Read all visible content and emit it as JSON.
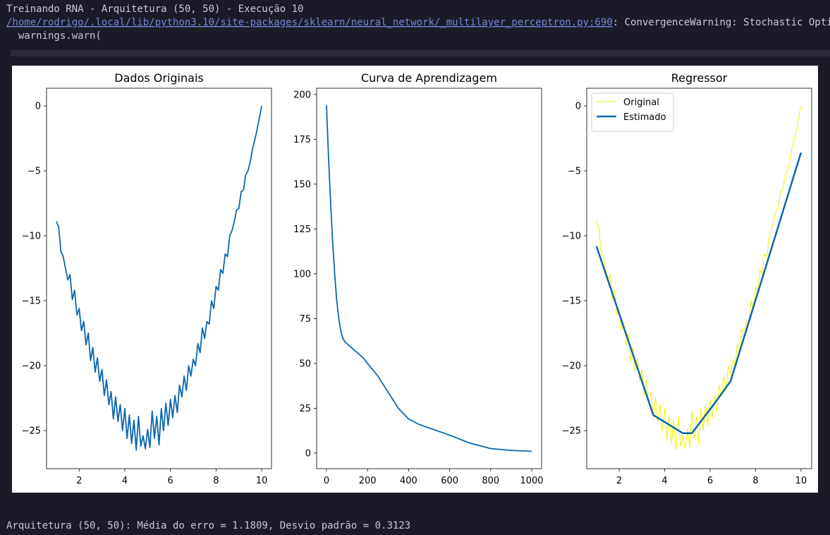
{
  "output": {
    "title_line": "Treinando RNA - Arquitetura (50, 50) - Execução 10",
    "warning_path": "/home/rodrigo/.local/lib/python3.10/site-packages/sklearn/neural_network/_multilayer_perceptron.py:690",
    "warning_message": ": ConvergenceWarning: Stochastic Opti",
    "warning_call": "  warnings.warn(",
    "result": "Arquitetura (50, 50): Média do erro = 1.1809, Desvio padrão = 0.3123"
  },
  "chart_data": [
    {
      "type": "line",
      "title": "Dados Originais",
      "color": "#0a68ae",
      "x": [
        1.0,
        1.1,
        1.2,
        1.3,
        1.4,
        1.5,
        1.6,
        1.7,
        1.8,
        1.9,
        2.0,
        2.1,
        2.2,
        2.3,
        2.4,
        2.5,
        2.6,
        2.7,
        2.8,
        2.9,
        3.0,
        3.1,
        3.2,
        3.3,
        3.4,
        3.5,
        3.6,
        3.7,
        3.8,
        3.9,
        4.0,
        4.1,
        4.2,
        4.3,
        4.4,
        4.5,
        4.6,
        4.7,
        4.8,
        4.9,
        5.0,
        5.1,
        5.2,
        5.3,
        5.4,
        5.5,
        5.6,
        5.7,
        5.8,
        5.9,
        6.0,
        6.1,
        6.2,
        6.3,
        6.4,
        6.5,
        6.6,
        6.7,
        6.8,
        6.9,
        7.0,
        7.1,
        7.2,
        7.3,
        7.4,
        7.5,
        7.6,
        7.7,
        7.8,
        7.9,
        8.0,
        8.1,
        8.2,
        8.3,
        8.4,
        8.5,
        8.6,
        8.7,
        8.8,
        8.9,
        9.0,
        9.1,
        9.2,
        9.3,
        9.4,
        9.5,
        9.6,
        9.7,
        9.8,
        9.9,
        10.0
      ],
      "values": [
        -8.9,
        -9.3,
        -11.2,
        -11.6,
        -12.5,
        -13.4,
        -13.0,
        -14.9,
        -14.2,
        -16.1,
        -15.6,
        -17.3,
        -16.6,
        -18.4,
        -17.5,
        -19.6,
        -18.6,
        -20.5,
        -19.4,
        -21.2,
        -20.3,
        -22.3,
        -21.1,
        -23.0,
        -22.0,
        -24.1,
        -22.4,
        -24.3,
        -23.0,
        -25.0,
        -23.3,
        -25.6,
        -23.8,
        -26.0,
        -24.2,
        -26.5,
        -23.9,
        -26.2,
        -25.4,
        -26.4,
        -24.9,
        -26.3,
        -23.5,
        -25.6,
        -23.9,
        -26.1,
        -23.3,
        -25.0,
        -22.9,
        -24.6,
        -22.6,
        -24.0,
        -22.3,
        -23.6,
        -21.5,
        -22.4,
        -20.8,
        -21.9,
        -20.0,
        -20.8,
        -19.5,
        -20.0,
        -18.3,
        -19.0,
        -17.1,
        -17.9,
        -16.6,
        -16.8,
        -15.0,
        -15.6,
        -13.9,
        -14.2,
        -12.6,
        -12.9,
        -11.4,
        -11.6,
        -10.0,
        -9.6,
        -8.9,
        -8.0,
        -7.9,
        -6.6,
        -6.5,
        -5.3,
        -5.0,
        -4.3,
        -3.3,
        -2.6,
        -1.8,
        -0.9,
        0.0
      ],
      "xlim": [
        0.57,
        10.43
      ],
      "ylim": [
        -27.93,
        1.36
      ],
      "xticks": [
        2,
        4,
        6,
        8,
        10
      ],
      "yticks": [
        0,
        {
          "value": -5,
          "label": "−5"
        },
        {
          "value": -10,
          "label": "−10"
        },
        {
          "value": -15,
          "label": "−15"
        },
        {
          "value": -20,
          "label": "−20"
        },
        {
          "value": -25,
          "label": "−25"
        }
      ]
    },
    {
      "type": "line",
      "title": "Curva de Aprendizagem",
      "color": "#0a68ae",
      "x": [
        0,
        10,
        20,
        30,
        40,
        50,
        60,
        70,
        80,
        90,
        100,
        120,
        150,
        180,
        200,
        250,
        300,
        350,
        400,
        450,
        500,
        600,
        700,
        800,
        900,
        1000
      ],
      "values": [
        194,
        165,
        140,
        118,
        100,
        85,
        75,
        68,
        64,
        62,
        61,
        59,
        56,
        53,
        50,
        43,
        34,
        25,
        19,
        16,
        14,
        10,
        5.5,
        2.5,
        1.5,
        1.0
      ],
      "xlim": [
        -48,
        1048
      ],
      "ylim": [
        -8.7,
        203.5
      ],
      "xticks": [
        0,
        200,
        400,
        600,
        800,
        1000
      ],
      "yticks": [
        0,
        25,
        50,
        75,
        100,
        125,
        150,
        175,
        200
      ]
    },
    {
      "type": "line",
      "title": "Regressor",
      "legend": "upper left",
      "series": [
        {
          "name": "Original",
          "color": "#f2f200",
          "line_width": 1,
          "x": [
            1.0,
            1.1,
            1.2,
            1.3,
            1.4,
            1.5,
            1.6,
            1.7,
            1.8,
            1.9,
            2.0,
            2.1,
            2.2,
            2.3,
            2.4,
            2.5,
            2.6,
            2.7,
            2.8,
            2.9,
            3.0,
            3.1,
            3.2,
            3.3,
            3.4,
            3.5,
            3.6,
            3.7,
            3.8,
            3.9,
            4.0,
            4.1,
            4.2,
            4.3,
            4.4,
            4.5,
            4.6,
            4.7,
            4.8,
            4.9,
            5.0,
            5.1,
            5.2,
            5.3,
            5.4,
            5.5,
            5.6,
            5.7,
            5.8,
            5.9,
            6.0,
            6.1,
            6.2,
            6.3,
            6.4,
            6.5,
            6.6,
            6.7,
            6.8,
            6.9,
            7.0,
            7.1,
            7.2,
            7.3,
            7.4,
            7.5,
            7.6,
            7.7,
            7.8,
            7.9,
            8.0,
            8.1,
            8.2,
            8.3,
            8.4,
            8.5,
            8.6,
            8.7,
            8.8,
            8.9,
            9.0,
            9.1,
            9.2,
            9.3,
            9.4,
            9.5,
            9.6,
            9.7,
            9.8,
            9.9,
            10.0
          ],
          "values": [
            -8.9,
            -9.3,
            -11.2,
            -11.6,
            -12.5,
            -13.4,
            -13.0,
            -14.9,
            -14.2,
            -16.1,
            -15.6,
            -17.3,
            -16.6,
            -18.4,
            -17.5,
            -19.6,
            -18.6,
            -20.5,
            -19.4,
            -21.2,
            -20.3,
            -22.3,
            -21.1,
            -23.0,
            -22.0,
            -24.1,
            -22.4,
            -24.3,
            -23.0,
            -25.0,
            -23.3,
            -25.6,
            -23.8,
            -26.0,
            -24.2,
            -26.5,
            -23.9,
            -26.2,
            -25.4,
            -26.4,
            -24.9,
            -26.3,
            -23.5,
            -25.6,
            -23.9,
            -26.1,
            -23.3,
            -25.0,
            -22.9,
            -24.6,
            -22.6,
            -24.0,
            -22.3,
            -23.6,
            -21.5,
            -22.4,
            -20.8,
            -21.9,
            -20.0,
            -20.8,
            -19.5,
            -20.0,
            -18.3,
            -19.0,
            -17.1,
            -17.9,
            -16.6,
            -16.8,
            -15.0,
            -15.6,
            -13.9,
            -14.2,
            -12.6,
            -12.9,
            -11.4,
            -11.6,
            -10.0,
            -9.6,
            -8.9,
            -8.0,
            -7.9,
            -6.6,
            -6.5,
            -5.3,
            -5.0,
            -4.3,
            -3.3,
            -2.6,
            -1.8,
            -0.9,
            0.0
          ]
        },
        {
          "name": "Estimado",
          "color": "#0a68ae",
          "line_width": 2.5,
          "x": [
            1.0,
            3.5,
            4.8,
            5.2,
            6.2,
            6.9,
            10.0
          ],
          "values": [
            -10.8,
            -23.8,
            -25.2,
            -25.2,
            -22.9,
            -21.2,
            -3.6
          ]
        }
      ],
      "xlim": [
        0.57,
        10.47
      ],
      "ylim": [
        -27.93,
        1.36
      ],
      "xticks": [
        2,
        4,
        6,
        8,
        10
      ],
      "yticks": [
        0,
        {
          "value": -5,
          "label": "−5"
        },
        {
          "value": -10,
          "label": "−10"
        },
        {
          "value": -15,
          "label": "−15"
        },
        {
          "value": -20,
          "label": "−20"
        },
        {
          "value": -25,
          "label": "−25"
        }
      ]
    }
  ]
}
